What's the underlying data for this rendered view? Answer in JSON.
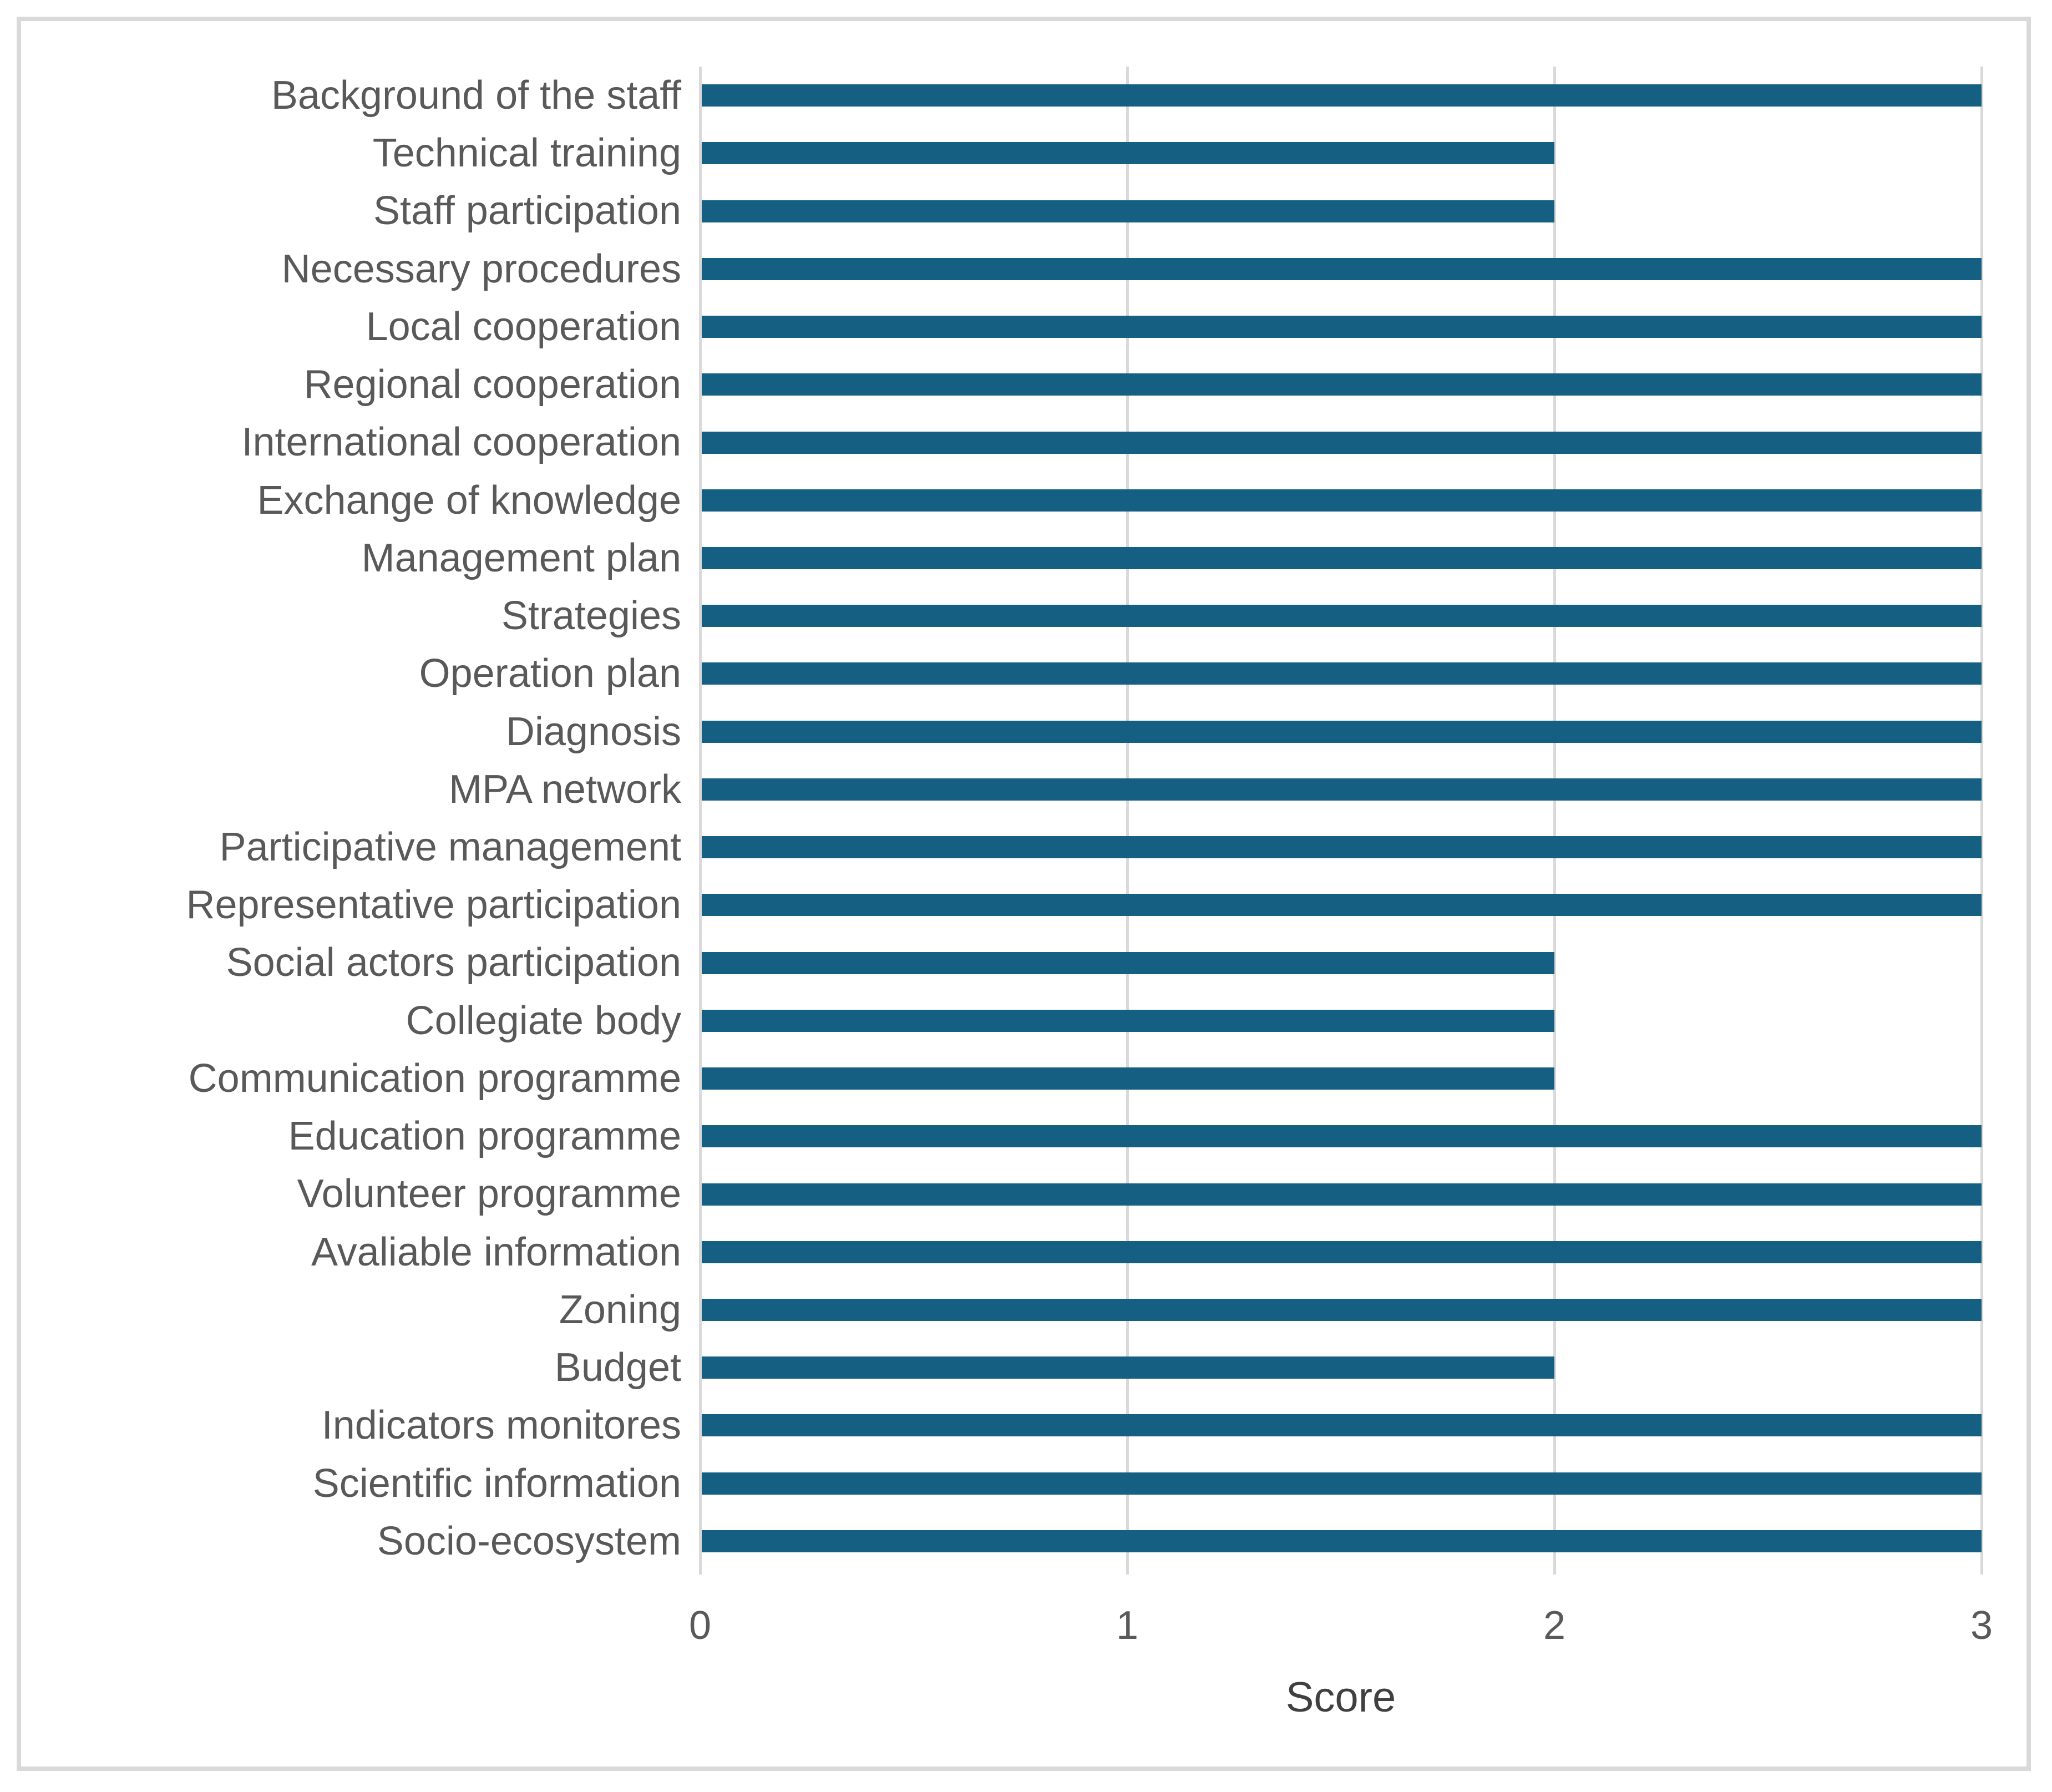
{
  "chart_data": {
    "type": "bar",
    "orientation": "horizontal",
    "title": "",
    "xlabel": "Score",
    "ylabel": "",
    "xlim": [
      0,
      3
    ],
    "x_ticks": [
      "0",
      "1",
      "2",
      "3"
    ],
    "grid": true,
    "legend": false,
    "categories": [
      "Background of the staff",
      "Technical training",
      "Staff participation",
      "Necessary procedures",
      "Local cooperation",
      "Regional cooperation",
      "International cooperation",
      "Exchange of knowledge",
      "Management plan",
      "Strategies",
      "Operation plan",
      "Diagnosis",
      "MPA network",
      "Participative management",
      "Representative participation",
      "Social actors participation",
      "Collegiate body",
      "Communication programme",
      "Education programme",
      "Volunteer programme",
      "Avaliable information",
      "Zoning",
      "Budget",
      "Indicators monitores",
      "Scientific information",
      "Socio-ecosystem"
    ],
    "values": [
      3,
      2,
      2,
      3,
      3,
      3,
      3,
      3,
      3,
      3,
      3,
      3,
      3,
      3,
      3,
      2,
      2,
      2,
      3,
      3,
      3,
      3,
      2,
      3,
      3,
      3
    ],
    "colors": {
      "bar": "#156082",
      "gridline": "#d9d9d9",
      "frame_border": "#d9d9d9",
      "category_label": "#595959",
      "tick_label": "#595959",
      "axis_title": "#404040",
      "background": "#ffffff"
    }
  }
}
